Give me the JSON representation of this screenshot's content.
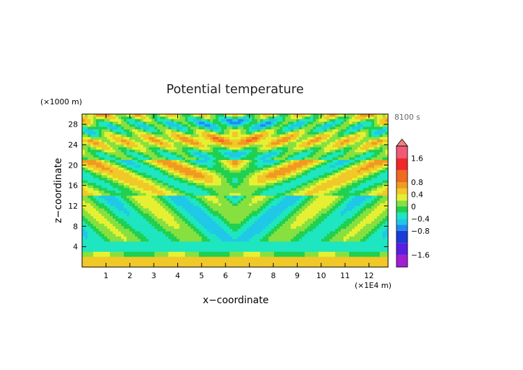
{
  "chart_data": {
    "type": "heatmap",
    "title": "Potential temperature",
    "time_label": "8100 s",
    "xlabel": "x−coordinate",
    "ylabel": "z−coordinate",
    "x_unit": "(×1E4 m)",
    "y_unit": "(×1000 m)",
    "xlim": [
      0,
      12.8
    ],
    "ylim": [
      0,
      30
    ],
    "x_ticks": [
      {
        "value": 1,
        "label": "1"
      },
      {
        "value": 2,
        "label": "2"
      },
      {
        "value": 3,
        "label": "3"
      },
      {
        "value": 4,
        "label": "4"
      },
      {
        "value": 5,
        "label": "5"
      },
      {
        "value": 6,
        "label": "6"
      },
      {
        "value": 7,
        "label": "7"
      },
      {
        "value": 8,
        "label": "8"
      },
      {
        "value": 9,
        "label": "9"
      },
      {
        "value": 10,
        "label": "10"
      },
      {
        "value": 11,
        "label": "11"
      },
      {
        "value": 12,
        "label": "12"
      }
    ],
    "y_ticks": [
      {
        "value": 4,
        "label": "4"
      },
      {
        "value": 8,
        "label": "8"
      },
      {
        "value": 12,
        "label": "12"
      },
      {
        "value": 16,
        "label": "16"
      },
      {
        "value": 20,
        "label": "20"
      },
      {
        "value": 24,
        "label": "24"
      },
      {
        "value": 28,
        "label": "28"
      }
    ],
    "colorbar": {
      "min": -2.0,
      "max": 2.0,
      "ticks": [
        {
          "value": 1.6,
          "label": "1.6"
        },
        {
          "value": 0.8,
          "label": "0.8"
        },
        {
          "value": 0.4,
          "label": "0.4"
        },
        {
          "value": 0,
          "label": "0"
        },
        {
          "value": -0.4,
          "label": "−0.4"
        },
        {
          "value": -0.8,
          "label": "−0.8"
        },
        {
          "value": -1.6,
          "label": "−1.6"
        }
      ],
      "levels": [
        -2.0,
        -1.6,
        -1.2,
        -0.8,
        -0.6,
        -0.4,
        -0.2,
        0,
        0.2,
        0.4,
        0.6,
        0.8,
        1.2,
        1.6,
        2.0
      ],
      "colors": [
        "#a01fd0",
        "#5a1ee0",
        "#1a3cd8",
        "#1e8cf0",
        "#20c8e8",
        "#1ee6c0",
        "#20d050",
        "#86e040",
        "#e6f032",
        "#f0c828",
        "#f09a20",
        "#f06a20",
        "#f02828",
        "#f05a78"
      ],
      "top_arrow_color": "#f08080"
    }
  }
}
